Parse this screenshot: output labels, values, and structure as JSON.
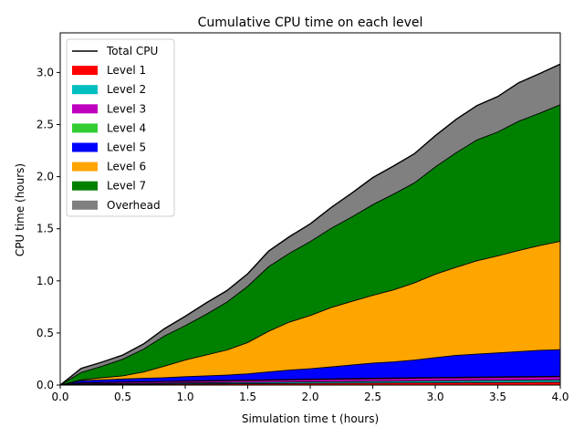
{
  "chart_data": {
    "type": "area",
    "stacked": true,
    "title": "Cumulative CPU time on each level",
    "xlabel": "Simulation time t (hours)",
    "ylabel": "CPU time (hours)",
    "xlim": [
      0,
      4
    ],
    "ylim": [
      0,
      3.38
    ],
    "xticks": [
      0.0,
      0.5,
      1.0,
      1.5,
      2.0,
      2.5,
      3.0,
      3.5,
      4.0
    ],
    "yticks": [
      0.0,
      0.5,
      1.0,
      1.5,
      2.0,
      2.5,
      3.0
    ],
    "grid": false,
    "legend_position": "top-left",
    "x": [
      0,
      0.167,
      0.333,
      0.5,
      0.667,
      0.833,
      1.0,
      1.167,
      1.333,
      1.5,
      1.667,
      1.833,
      2.0,
      2.167,
      2.333,
      2.5,
      2.667,
      2.833,
      3.0,
      3.167,
      3.333,
      3.5,
      3.667,
      3.833,
      4.0
    ],
    "series": [
      {
        "name": "Level 1",
        "color": "#ff0000",
        "values": [
          0,
          0.005,
          0.006,
          0.007,
          0.008,
          0.009,
          0.01,
          0.011,
          0.012,
          0.013,
          0.014,
          0.015,
          0.016,
          0.017,
          0.018,
          0.019,
          0.02,
          0.021,
          0.022,
          0.023,
          0.024,
          0.025,
          0.026,
          0.027,
          0.028
        ]
      },
      {
        "name": "Level 2",
        "color": "#00bfbf",
        "values": [
          0,
          0.005,
          0.006,
          0.007,
          0.008,
          0.009,
          0.01,
          0.011,
          0.012,
          0.012,
          0.013,
          0.014,
          0.015,
          0.015,
          0.016,
          0.017,
          0.017,
          0.018,
          0.019,
          0.019,
          0.02,
          0.02,
          0.021,
          0.021,
          0.022
        ]
      },
      {
        "name": "Level 3",
        "color": "#bf00bf",
        "values": [
          0,
          0.01,
          0.012,
          0.013,
          0.014,
          0.015,
          0.016,
          0.017,
          0.018,
          0.019,
          0.02,
          0.021,
          0.022,
          0.023,
          0.024,
          0.025,
          0.026,
          0.026,
          0.027,
          0.028,
          0.028,
          0.029,
          0.029,
          0.03,
          0.03
        ]
      },
      {
        "name": "Level 4",
        "color": "#32cd32",
        "values": [
          0,
          0.002,
          0.002,
          0.003,
          0.003,
          0.003,
          0.004,
          0.004,
          0.004,
          0.004,
          0.004,
          0.004,
          0.004,
          0.004,
          0.005,
          0.005,
          0.005,
          0.005,
          0.005,
          0.005,
          0.005,
          0.005,
          0.005,
          0.005,
          0.005
        ]
      },
      {
        "name": "Level 5",
        "color": "#0000ff",
        "values": [
          0,
          0.02,
          0.024,
          0.028,
          0.032,
          0.035,
          0.04,
          0.045,
          0.05,
          0.06,
          0.075,
          0.09,
          0.1,
          0.115,
          0.13,
          0.145,
          0.155,
          0.17,
          0.19,
          0.21,
          0.22,
          0.23,
          0.24,
          0.25,
          0.255
        ]
      },
      {
        "name": "Level 6",
        "color": "#ffa500",
        "values": [
          0,
          0.008,
          0.02,
          0.03,
          0.06,
          0.11,
          0.16,
          0.2,
          0.24,
          0.3,
          0.39,
          0.46,
          0.51,
          0.57,
          0.61,
          0.65,
          0.69,
          0.74,
          0.8,
          0.845,
          0.895,
          0.93,
          0.97,
          1.005,
          1.04
        ]
      },
      {
        "name": "Level 7",
        "color": "#008000",
        "values": [
          0,
          0.07,
          0.11,
          0.16,
          0.22,
          0.29,
          0.33,
          0.39,
          0.46,
          0.54,
          0.62,
          0.66,
          0.71,
          0.76,
          0.81,
          0.87,
          0.92,
          0.96,
          1.03,
          1.1,
          1.16,
          1.19,
          1.24,
          1.27,
          1.31
        ]
      },
      {
        "name": "Overhead",
        "color": "#808080",
        "values": [
          0,
          0.04,
          0.04,
          0.04,
          0.05,
          0.07,
          0.09,
          0.11,
          0.11,
          0.12,
          0.15,
          0.16,
          0.17,
          0.2,
          0.23,
          0.26,
          0.27,
          0.28,
          0.3,
          0.32,
          0.33,
          0.34,
          0.37,
          0.38,
          0.39
        ]
      }
    ],
    "total_line": {
      "name": "Total CPU",
      "color": "#000000"
    }
  }
}
